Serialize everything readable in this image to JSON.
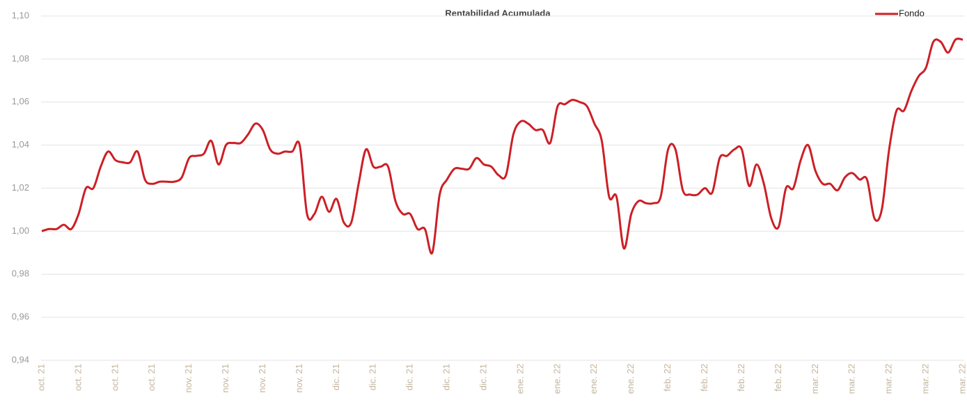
{
  "chart_data": {
    "type": "line",
    "title": "Rentabilidad Acumulada",
    "categories": [
      "oct. 21",
      null,
      null,
      null,
      null,
      "oct. 21",
      null,
      null,
      null,
      null,
      "oct. 21",
      null,
      null,
      null,
      null,
      "oct. 21",
      null,
      null,
      null,
      null,
      "nov. 21",
      null,
      null,
      null,
      null,
      "nov. 21",
      null,
      null,
      null,
      null,
      "nov. 21",
      null,
      null,
      null,
      null,
      "nov. 21",
      null,
      null,
      null,
      null,
      "dic. 21",
      null,
      null,
      null,
      null,
      "dic. 21",
      null,
      null,
      null,
      null,
      "dic. 21",
      null,
      null,
      null,
      null,
      "dic. 21",
      null,
      null,
      null,
      null,
      "dic. 21",
      null,
      null,
      null,
      null,
      "ene. 22",
      null,
      null,
      null,
      null,
      "ene. 22",
      null,
      null,
      null,
      null,
      "ene. 22",
      null,
      null,
      null,
      null,
      "ene. 22",
      null,
      null,
      null,
      null,
      "feb. 22",
      null,
      null,
      null,
      null,
      "feb. 22",
      null,
      null,
      null,
      null,
      "feb. 22",
      null,
      null,
      null,
      null,
      "feb. 22",
      null,
      null,
      null,
      null,
      "mar. 22",
      null,
      null,
      null,
      null,
      "mar. 22",
      null,
      null,
      null,
      null,
      "mar. 22",
      null,
      null,
      null,
      null,
      "mar. 22",
      null,
      null,
      null,
      null,
      "mar. 22"
    ],
    "series": [
      {
        "name": "Fondo",
        "color": "#cc1f26",
        "values": [
          1.0,
          1.001,
          1.001,
          1.003,
          1.001,
          1.008,
          1.02,
          1.02,
          1.03,
          1.037,
          1.033,
          1.032,
          1.032,
          1.037,
          1.024,
          1.022,
          1.023,
          1.023,
          1.023,
          1.025,
          1.034,
          1.035,
          1.036,
          1.042,
          1.031,
          1.04,
          1.041,
          1.041,
          1.045,
          1.05,
          1.047,
          1.038,
          1.036,
          1.037,
          1.037,
          1.04,
          1.008,
          1.008,
          1.016,
          1.009,
          1.015,
          1.004,
          1.004,
          1.022,
          1.038,
          1.03,
          1.03,
          1.03,
          1.014,
          1.008,
          1.008,
          1.001,
          1.001,
          0.99,
          1.017,
          1.024,
          1.029,
          1.029,
          1.029,
          1.034,
          1.031,
          1.03,
          1.026,
          1.026,
          1.045,
          1.051,
          1.05,
          1.047,
          1.047,
          1.041,
          1.058,
          1.059,
          1.061,
          1.06,
          1.058,
          1.05,
          1.042,
          1.016,
          1.016,
          0.992,
          1.008,
          1.014,
          1.013,
          1.013,
          1.016,
          1.038,
          1.038,
          1.019,
          1.017,
          1.017,
          1.02,
          1.018,
          1.034,
          1.035,
          1.038,
          1.038,
          1.021,
          1.031,
          1.022,
          1.006,
          1.002,
          1.02,
          1.02,
          1.033,
          1.04,
          1.028,
          1.022,
          1.022,
          1.019,
          1.025,
          1.027,
          1.024,
          1.024,
          1.006,
          1.01,
          1.038,
          1.056,
          1.056,
          1.065,
          1.072,
          1.076,
          1.088,
          1.088,
          1.083,
          1.089,
          1.089
        ]
      }
    ],
    "ylim": [
      0.94,
      1.1
    ],
    "yticks": [
      {
        "value": 0.94,
        "label": "0,94"
      },
      {
        "value": 0.96,
        "label": "0,96"
      },
      {
        "value": 0.98,
        "label": "0,98"
      },
      {
        "value": 1.0,
        "label": "1,00"
      },
      {
        "value": 1.02,
        "label": "1,02"
      },
      {
        "value": 1.04,
        "label": "1,04"
      },
      {
        "value": 1.06,
        "label": "1,06"
      },
      {
        "value": 1.08,
        "label": "1,08"
      },
      {
        "value": 1.1,
        "label": "1,10"
      }
    ],
    "grid": true,
    "legend": "top-right"
  }
}
